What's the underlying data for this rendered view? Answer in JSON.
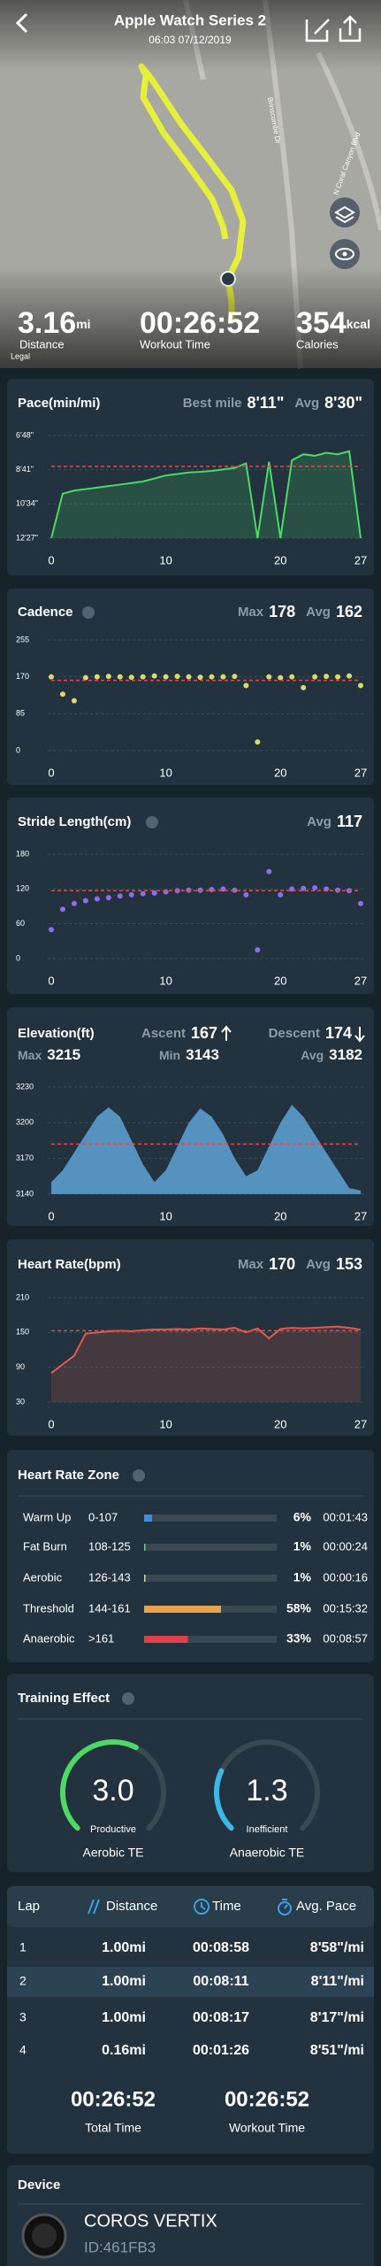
{
  "header": {
    "title": "Apple Watch Series 2",
    "subtitle": "06:03 07/12/2019"
  },
  "map": {
    "street_labels": [
      "Brinscombe Dr",
      "N Coral Canyon Blvd"
    ],
    "legal": "Legal"
  },
  "summary": [
    {
      "value": "3.16",
      "unit": "mi",
      "label": "Distance"
    },
    {
      "value": "00:26:52",
      "label": "Workout Time"
    },
    {
      "value": "354",
      "unit": "kcal",
      "label": "Calories"
    }
  ],
  "pace": {
    "type": "line",
    "title": "Pace(min/mi)",
    "best_label": "Best mile",
    "best": "8'11\"",
    "avg_label": "Avg",
    "avg": {
      "value": 510,
      "label": "8'30\""
    },
    "color": "#4cd964",
    "x": [
      0,
      1,
      2,
      3,
      4,
      5,
      6,
      7,
      8,
      9,
      10,
      11,
      12,
      13,
      14,
      15,
      16,
      17,
      18,
      19,
      20,
      21,
      22,
      23,
      24,
      25,
      26,
      27
    ],
    "values": [
      747,
      600,
      590,
      585,
      580,
      575,
      570,
      565,
      560,
      550,
      540,
      535,
      530,
      528,
      525,
      520,
      515,
      500,
      747,
      495,
      747,
      490,
      470,
      475,
      465,
      470,
      460,
      747
    ],
    "xlim": [
      0,
      27
    ],
    "xticks": [
      0,
      10,
      20,
      27
    ],
    "ylim": [
      747,
      408
    ],
    "yticks": [
      {
        "value": 408,
        "label": "6'48\""
      },
      {
        "value": 521,
        "label": "8'41\""
      },
      {
        "value": 634,
        "label": "10'34\""
      },
      {
        "value": 747,
        "label": "12'27\""
      }
    ]
  },
  "cadence": {
    "type": "scatter",
    "title": "Cadence",
    "max_label": "Max",
    "max": 178,
    "avg_label": "Avg",
    "avg": 162,
    "color": "#d6dc6a",
    "x": [
      0,
      1,
      2,
      3,
      4,
      5,
      6,
      7,
      8,
      9,
      10,
      11,
      12,
      13,
      14,
      15,
      16,
      17,
      18,
      19,
      20,
      21,
      22,
      23,
      24,
      25,
      26,
      27
    ],
    "values": [
      170,
      130,
      115,
      168,
      170,
      171,
      170,
      169,
      170,
      172,
      170,
      171,
      170,
      169,
      170,
      170,
      171,
      150,
      20,
      170,
      168,
      170,
      145,
      170,
      171,
      170,
      172,
      150
    ],
    "xlim": [
      0,
      27
    ],
    "xticks": [
      0,
      10,
      20,
      27
    ],
    "ylim": [
      0,
      255
    ],
    "yticks": [
      0,
      85,
      170,
      255
    ]
  },
  "stride": {
    "type": "scatter",
    "title": "Stride Length(cm)",
    "avg_label": "Avg",
    "avg": 117,
    "color": "#8d6cf0",
    "x": [
      0,
      1,
      2,
      3,
      4,
      5,
      6,
      7,
      8,
      9,
      10,
      11,
      12,
      13,
      14,
      15,
      16,
      17,
      18,
      19,
      20,
      21,
      22,
      23,
      24,
      25,
      26,
      27
    ],
    "values": [
      50,
      85,
      95,
      100,
      103,
      105,
      108,
      110,
      112,
      113,
      115,
      117,
      118,
      118,
      119,
      120,
      118,
      110,
      15,
      150,
      110,
      120,
      121,
      122,
      120,
      118,
      117,
      95
    ],
    "xlim": [
      0,
      27
    ],
    "xticks": [
      0,
      10,
      20,
      27
    ],
    "ylim": [
      0,
      180
    ],
    "yticks": [
      0,
      60,
      120,
      180
    ]
  },
  "elevation": {
    "type": "area",
    "title": "Elevation(ft)",
    "ascent_label": "Ascent",
    "ascent": 167,
    "descent_label": "Descent",
    "descent": 174,
    "max_label": "Max",
    "max": 3215,
    "min_label": "Min",
    "min": 3143,
    "avg_label": "Avg",
    "avg": 3182,
    "color": "#5fa3d6",
    "x": [
      0,
      1,
      2,
      3,
      4,
      5,
      6,
      7,
      8,
      9,
      10,
      11,
      12,
      13,
      14,
      15,
      16,
      17,
      18,
      19,
      20,
      21,
      22,
      23,
      24,
      25,
      26,
      27
    ],
    "values": [
      3150,
      3160,
      3175,
      3190,
      3205,
      3213,
      3205,
      3185,
      3165,
      3150,
      3160,
      3180,
      3200,
      3212,
      3205,
      3190,
      3170,
      3155,
      3160,
      3180,
      3200,
      3215,
      3205,
      3190,
      3175,
      3160,
      3145,
      3143
    ],
    "xlim": [
      0,
      27
    ],
    "xticks": [
      0,
      10,
      20,
      27
    ],
    "ylim": [
      3140,
      3230
    ],
    "yticks": [
      3140,
      3170,
      3200,
      3230
    ]
  },
  "heart_rate": {
    "type": "line",
    "title": "Heart Rate(bpm)",
    "max_label": "Max",
    "max": 170,
    "avg_label": "Avg",
    "avg": 153,
    "color": "#e8574a",
    "x": [
      0,
      1,
      2,
      3,
      4,
      5,
      6,
      7,
      8,
      9,
      10,
      11,
      12,
      13,
      14,
      15,
      16,
      17,
      18,
      19,
      20,
      21,
      22,
      23,
      24,
      25,
      26,
      27
    ],
    "values": [
      80,
      95,
      110,
      148,
      150,
      152,
      153,
      152,
      154,
      155,
      155,
      156,
      155,
      157,
      156,
      155,
      158,
      150,
      157,
      140,
      156,
      158,
      157,
      158,
      159,
      160,
      158,
      155
    ],
    "xlim": [
      0,
      27
    ],
    "xticks": [
      0,
      10,
      20,
      27
    ],
    "ylim": [
      30,
      210
    ],
    "yticks": [
      30,
      90,
      150,
      210
    ]
  },
  "zones": {
    "title": "Heart Rate Zone",
    "rows": [
      {
        "name": "Warm Up",
        "range": "0-107",
        "percent": 6,
        "percent_label": "6%",
        "time": "00:01:43",
        "color": "#3a8ee6"
      },
      {
        "name": "Fat Burn",
        "range": "108-125",
        "percent": 1,
        "percent_label": "1%",
        "time": "00:00:24",
        "color": "#4cd964"
      },
      {
        "name": "Aerobic",
        "range": "126-143",
        "percent": 1,
        "percent_label": "1%",
        "time": "00:00:16",
        "color": "#d6dc6a"
      },
      {
        "name": "Threshold",
        "range": "144-161",
        "percent": 58,
        "percent_label": "58%",
        "time": "00:15:32",
        "color": "#e8a24a"
      },
      {
        "name": "Anaerobic",
        "range": ">161",
        "percent": 33,
        "percent_label": "33%",
        "time": "00:08:57",
        "color": "#e0404a"
      }
    ]
  },
  "training": {
    "title": "Training Effect",
    "range": [
      0,
      5
    ],
    "gauges": [
      {
        "value": 3.0,
        "value_label": "3.0",
        "status": "Productive",
        "label": "Aerobic TE",
        "color": "#4cd964"
      },
      {
        "value": 1.3,
        "value_label": "1.3",
        "status": "Inefficient",
        "label": "Anaerobic TE",
        "color": "#3ab8e8"
      }
    ]
  },
  "laps": {
    "headers": [
      "Lap",
      "Distance",
      "Time",
      "Avg. Pace"
    ],
    "highlight_row": 1,
    "rows": [
      [
        "1",
        "1.00mi",
        "00:08:58",
        "8'58\"/mi"
      ],
      [
        "2",
        "1.00mi",
        "00:08:11",
        "8'11\"/mi"
      ],
      [
        "3",
        "1.00mi",
        "00:08:17",
        "8'17\"/mi"
      ],
      [
        "4",
        "0.16mi",
        "00:01:26",
        "8'51\"/mi"
      ]
    ],
    "totals": [
      {
        "value": "00:26:52",
        "label": "Total Time"
      },
      {
        "value": "00:26:52",
        "label": "Workout Time"
      }
    ]
  },
  "device": {
    "title": "Device",
    "name": "COROS VERTIX",
    "id": "ID:461FB3"
  }
}
